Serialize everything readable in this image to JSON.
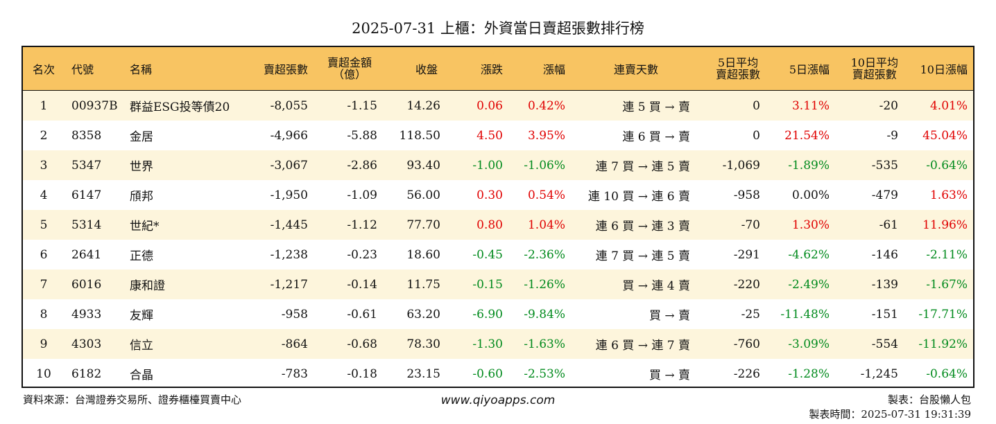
{
  "title": "2025-07-31 上櫃：外資當日賣超張數排行榜",
  "colors": {
    "header_bg": "#f8c462",
    "row_alt_bg": "#fdf5dc",
    "up": "#e00000",
    "down": "#008a1c"
  },
  "headers": {
    "rank": "名次",
    "code": "代號",
    "name": "名稱",
    "sell_lots": "賣超張數",
    "sell_amount_l1": "賣超金額",
    "sell_amount_l2": "（億）",
    "close": "收盤",
    "change": "漲跌",
    "pct": "漲幅",
    "streak": "連賣天數",
    "avg5_l1": "5日平均",
    "avg5_l2": "賣超張數",
    "pct5": "5日漲幅",
    "avg10_l1": "10日平均",
    "avg10_l2": "賣超張數",
    "pct10": "10日漲幅"
  },
  "rows": [
    {
      "rank": "1",
      "code": "00937B",
      "name": "群益ESG投等債20",
      "sell": "-8,055",
      "amount": "-1.15",
      "close": "14.26",
      "chg": "0.06",
      "pct": "0.42%",
      "streak": "連 5 買 → 賣",
      "avg5": "0",
      "pct5": "3.11%",
      "avg10": "-20",
      "pct10": "4.01%"
    },
    {
      "rank": "2",
      "code": "8358",
      "name": "金居",
      "sell": "-4,966",
      "amount": "-5.88",
      "close": "118.50",
      "chg": "4.50",
      "pct": "3.95%",
      "streak": "連 6 買 → 賣",
      "avg5": "0",
      "pct5": "21.54%",
      "avg10": "-9",
      "pct10": "45.04%"
    },
    {
      "rank": "3",
      "code": "5347",
      "name": "世界",
      "sell": "-3,067",
      "amount": "-2.86",
      "close": "93.40",
      "chg": "-1.00",
      "pct": "-1.06%",
      "streak": "連 7 買 → 連 5 賣",
      "avg5": "-1,069",
      "pct5": "-1.89%",
      "avg10": "-535",
      "pct10": "-0.64%"
    },
    {
      "rank": "4",
      "code": "6147",
      "name": "頎邦",
      "sell": "-1,950",
      "amount": "-1.09",
      "close": "56.00",
      "chg": "0.30",
      "pct": "0.54%",
      "streak": "連 10 買 → 連 6 賣",
      "avg5": "-958",
      "pct5": "0.00%",
      "avg10": "-479",
      "pct10": "1.63%"
    },
    {
      "rank": "5",
      "code": "5314",
      "name": "世紀*",
      "sell": "-1,445",
      "amount": "-1.12",
      "close": "77.70",
      "chg": "0.80",
      "pct": "1.04%",
      "streak": "連 6 買 → 連 3 賣",
      "avg5": "-70",
      "pct5": "1.30%",
      "avg10": "-61",
      "pct10": "11.96%"
    },
    {
      "rank": "6",
      "code": "2641",
      "name": "正德",
      "sell": "-1,238",
      "amount": "-0.23",
      "close": "18.60",
      "chg": "-0.45",
      "pct": "-2.36%",
      "streak": "連 7 買 → 連 5 賣",
      "avg5": "-291",
      "pct5": "-4.62%",
      "avg10": "-146",
      "pct10": "-2.11%"
    },
    {
      "rank": "7",
      "code": "6016",
      "name": "康和證",
      "sell": "-1,217",
      "amount": "-0.14",
      "close": "11.75",
      "chg": "-0.15",
      "pct": "-1.26%",
      "streak": "買 → 連 4 賣",
      "avg5": "-220",
      "pct5": "-2.49%",
      "avg10": "-139",
      "pct10": "-1.67%"
    },
    {
      "rank": "8",
      "code": "4933",
      "name": "友輝",
      "sell": "-958",
      "amount": "-0.61",
      "close": "63.20",
      "chg": "-6.90",
      "pct": "-9.84%",
      "streak": "買 → 賣",
      "avg5": "-25",
      "pct5": "-11.48%",
      "avg10": "-151",
      "pct10": "-17.71%"
    },
    {
      "rank": "9",
      "code": "4303",
      "name": "信立",
      "sell": "-864",
      "amount": "-0.68",
      "close": "78.30",
      "chg": "-1.30",
      "pct": "-1.63%",
      "streak": "連 6 買 → 連 7 賣",
      "avg5": "-760",
      "pct5": "-3.09%",
      "avg10": "-554",
      "pct10": "-11.92%"
    },
    {
      "rank": "10",
      "code": "6182",
      "name": "合晶",
      "sell": "-783",
      "amount": "-0.18",
      "close": "23.15",
      "chg": "-0.60",
      "pct": "-2.53%",
      "streak": "買 → 賣",
      "avg5": "-226",
      "pct5": "-1.28%",
      "avg10": "-1,245",
      "pct10": "-0.64%"
    }
  ],
  "footer": {
    "source": "資料來源：台灣證券交易所、證券櫃檯買賣中心",
    "website": "www.qiyoapps.com",
    "maker": "製表：台股懶人包",
    "time": "製表時間：2025-07-31 19:31:39"
  }
}
